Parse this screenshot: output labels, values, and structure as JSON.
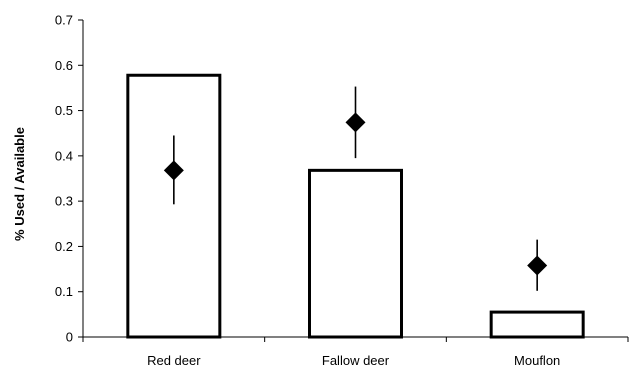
{
  "chart_data": {
    "type": "bar",
    "title": "",
    "xlabel": "",
    "ylabel": "% Used / Available",
    "ylim": [
      0,
      0.7
    ],
    "yticks": [
      "0",
      "0.1",
      "0.2",
      "0.3",
      "0.4",
      "0.5",
      "0.6",
      "0.7"
    ],
    "categories": [
      "Red deer",
      "Fallow deer",
      "Mouflon"
    ],
    "series": [
      {
        "kind": "bar",
        "values": [
          0.578,
          0.368,
          0.055
        ]
      },
      {
        "kind": "point",
        "marker": "diamond",
        "values": [
          0.368,
          0.474,
          0.158
        ],
        "error_low": [
          0.293,
          0.395,
          0.102
        ],
        "error_high": [
          0.445,
          0.553,
          0.215
        ]
      }
    ],
    "grid": false,
    "legend": "none"
  }
}
